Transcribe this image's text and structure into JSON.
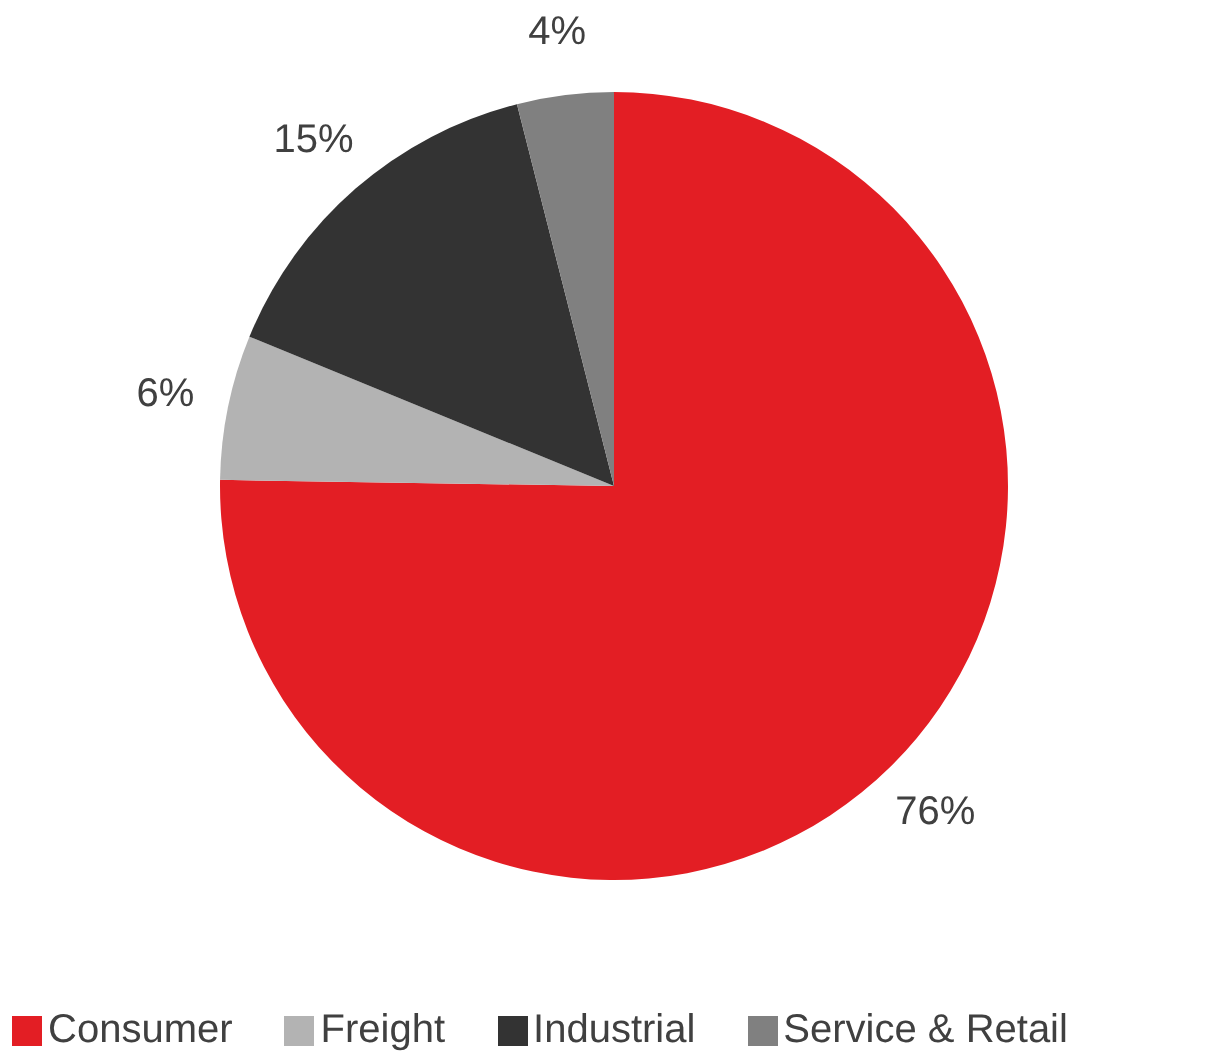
{
  "chart_data": {
    "type": "pie",
    "categories": [
      "Consumer",
      "Freight",
      "Industrial",
      "Service & Retail"
    ],
    "values": [
      76,
      6,
      15,
      4
    ],
    "colors": [
      "#e31e24",
      "#b3b3b3",
      "#333333",
      "#808080"
    ],
    "value_labels": [
      "76%",
      "6%",
      "15%",
      "4%"
    ],
    "legend": "bottom"
  }
}
